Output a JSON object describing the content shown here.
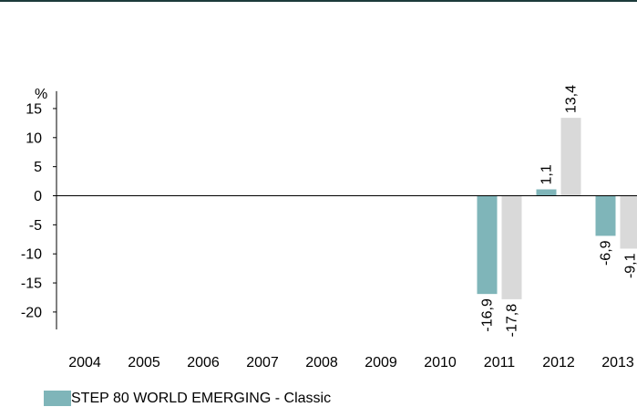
{
  "colors": {
    "series_primary": "#7fb5b9",
    "series_secondary": "#d9d9d9",
    "axis": "#000000",
    "top_rule": "#1c3a3a"
  },
  "chart_data": {
    "type": "bar",
    "categories": [
      "2004",
      "2005",
      "2006",
      "2007",
      "2008",
      "2009",
      "2010",
      "2011",
      "2012",
      "2013"
    ],
    "ylabel": "%",
    "ylim": [
      -23,
      18
    ],
    "yticks": [
      15,
      10,
      5,
      0,
      -5,
      -10,
      -15,
      -20
    ],
    "grid": false,
    "legend_position": "bottom-left",
    "series": [
      {
        "name": "STEP 80 WORLD EMERGING - Classic",
        "color": "#7fb5b9",
        "values": [
          null,
          null,
          null,
          null,
          null,
          null,
          null,
          -16.9,
          1.1,
          -6.9
        ],
        "labels": [
          "",
          "",
          "",
          "",
          "",
          "",
          "",
          "-16,9",
          "1,1",
          "-6,9"
        ]
      },
      {
        "color": "#d9d9d9",
        "values": [
          null,
          null,
          null,
          null,
          null,
          null,
          null,
          -17.8,
          13.4,
          -9.1
        ],
        "labels": [
          "",
          "",
          "",
          "",
          "",
          "",
          "",
          "-17,8",
          "13,4",
          "-9,1"
        ]
      }
    ]
  }
}
